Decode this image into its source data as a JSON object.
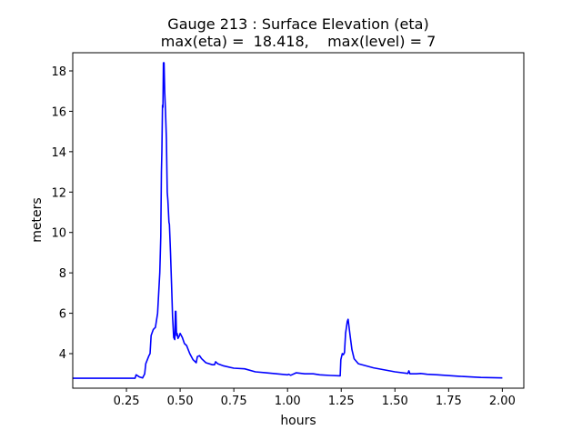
{
  "chart_data": {
    "type": "line",
    "title": "Gauge 213 : Surface Elevation (eta)",
    "subtitle": "max(eta) =  18.418,    max(level) = 7",
    "xlabel": "hours",
    "ylabel": "meters",
    "xlim": [
      0.0,
      2.1
    ],
    "ylim": [
      2.29,
      18.9
    ],
    "xticks": [
      0.25,
      0.5,
      0.75,
      1.0,
      1.25,
      1.5,
      1.75,
      2.0
    ],
    "xtick_labels": [
      "0.25",
      "0.50",
      "0.75",
      "1.00",
      "1.25",
      "1.50",
      "1.75",
      "2.00"
    ],
    "yticks": [
      4,
      6,
      8,
      10,
      12,
      14,
      16,
      18
    ],
    "ytick_labels": [
      "4",
      "6",
      "8",
      "10",
      "12",
      "14",
      "16",
      "18"
    ],
    "grid": false,
    "series": [
      {
        "name": "eta",
        "color": "#0000ff",
        "x": [
          0.0,
          0.29,
          0.295,
          0.31,
          0.325,
          0.335,
          0.34,
          0.355,
          0.36,
          0.365,
          0.375,
          0.385,
          0.395,
          0.4,
          0.405,
          0.41,
          0.413,
          0.415,
          0.418,
          0.42,
          0.422,
          0.425,
          0.428,
          0.432,
          0.436,
          0.44,
          0.443,
          0.448,
          0.45,
          0.455,
          0.46,
          0.465,
          0.47,
          0.475,
          0.478,
          0.48,
          0.483,
          0.486,
          0.49,
          0.495,
          0.5,
          0.51,
          0.52,
          0.53,
          0.545,
          0.56,
          0.575,
          0.58,
          0.59,
          0.6,
          0.62,
          0.65,
          0.66,
          0.665,
          0.675,
          0.7,
          0.75,
          0.8,
          0.85,
          0.9,
          0.95,
          1.0,
          1.005,
          1.015,
          1.04,
          1.08,
          1.12,
          1.15,
          1.2,
          1.245,
          1.248,
          1.255,
          1.26,
          1.265,
          1.27,
          1.278,
          1.282,
          1.29,
          1.3,
          1.31,
          1.33,
          1.4,
          1.5,
          1.56,
          1.565,
          1.57,
          1.6,
          1.62,
          1.65,
          1.7,
          1.8,
          1.9,
          2.0
        ],
        "y": [
          2.78,
          2.78,
          2.95,
          2.85,
          2.8,
          3.0,
          3.5,
          3.9,
          4.0,
          4.9,
          5.2,
          5.3,
          6.0,
          7.0,
          8.0,
          9.8,
          13.0,
          14.0,
          16.3,
          16.2,
          18.4,
          18.4,
          17.0,
          16.0,
          14.6,
          12.0,
          11.6,
          10.5,
          10.4,
          9.0,
          7.5,
          5.8,
          4.8,
          4.7,
          6.1,
          6.1,
          4.9,
          5.0,
          4.75,
          4.85,
          5.0,
          4.8,
          4.5,
          4.4,
          4.0,
          3.7,
          3.55,
          3.85,
          3.9,
          3.75,
          3.55,
          3.45,
          3.45,
          3.6,
          3.5,
          3.4,
          3.28,
          3.25,
          3.1,
          3.05,
          3.0,
          2.95,
          2.98,
          2.93,
          3.05,
          3.0,
          3.0,
          2.95,
          2.92,
          2.9,
          3.7,
          4.0,
          3.95,
          4.05,
          5.0,
          5.6,
          5.7,
          5.0,
          4.2,
          3.75,
          3.5,
          3.3,
          3.1,
          3.02,
          3.15,
          3.0,
          3.0,
          3.02,
          2.98,
          2.95,
          2.88,
          2.82,
          2.8
        ]
      }
    ]
  }
}
